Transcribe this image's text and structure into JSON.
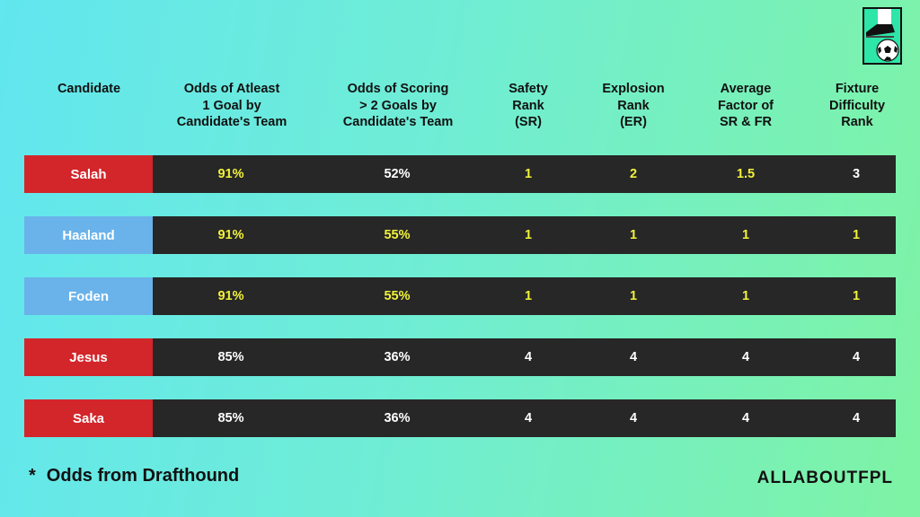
{
  "headers": [
    "Candidate",
    "Odds of Atleast\n1 Goal by\nCandidate's Team",
    "Odds of Scoring\n> 2 Goals by\nCandidate's Team",
    "Safety\nRank\n(SR)",
    "Explosion\nRank\n(ER)",
    "Average\nFactor of\nSR & FR",
    "Fixture\nDifficulty\nRank"
  ],
  "colors": {
    "red": "#d2262b",
    "blue": "#6ab3ea",
    "yellow": "#f2f23a",
    "white": "#ffffff"
  },
  "rows": [
    {
      "name": "Salah",
      "tag": "red",
      "cells": [
        "91%",
        "52%",
        "1",
        "2",
        "1.5",
        "3"
      ],
      "highlight": [
        true,
        false,
        true,
        true,
        true,
        false
      ]
    },
    {
      "name": "Haaland",
      "tag": "blue",
      "cells": [
        "91%",
        "55%",
        "1",
        "1",
        "1",
        "1"
      ],
      "highlight": [
        true,
        true,
        true,
        true,
        true,
        true
      ]
    },
    {
      "name": "Foden",
      "tag": "blue",
      "cells": [
        "91%",
        "55%",
        "1",
        "1",
        "1",
        "1"
      ],
      "highlight": [
        true,
        true,
        true,
        true,
        true,
        true
      ]
    },
    {
      "name": "Jesus",
      "tag": "red",
      "cells": [
        "85%",
        "36%",
        "4",
        "4",
        "4",
        "4"
      ],
      "highlight": [
        false,
        false,
        false,
        false,
        false,
        false
      ]
    },
    {
      "name": "Saka",
      "tag": "red",
      "cells": [
        "85%",
        "36%",
        "4",
        "4",
        "4",
        "4"
      ],
      "highlight": [
        false,
        false,
        false,
        false,
        false,
        false
      ]
    }
  ],
  "footnote": {
    "star": "*",
    "text": "Odds from Drafthound"
  },
  "brand": "ALLABOUTFPL",
  "logo_icon": "boot-and-ball-icon"
}
